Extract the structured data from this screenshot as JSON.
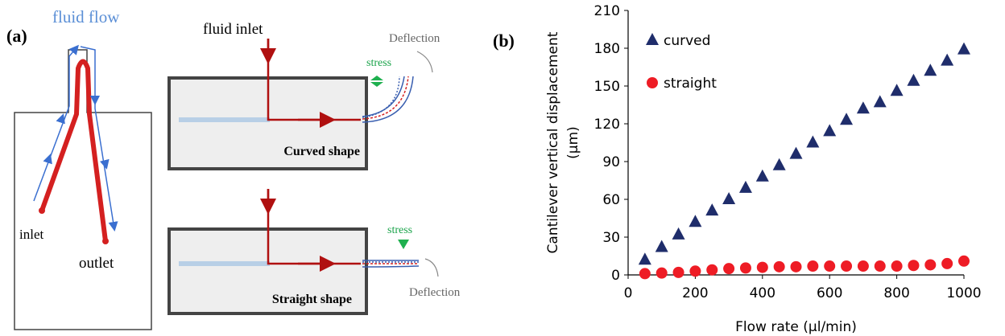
{
  "panel_a": {
    "label": "(a)",
    "fluid_flow": "fluid flow",
    "inlet": "inlet",
    "outlet": "outlet",
    "fluid_inlet": "fluid inlet",
    "curved": {
      "stress": "stress",
      "deflection": "Deflection",
      "caption": "Curved shape"
    },
    "straight": {
      "stress": "stress",
      "deflection": "Deflection",
      "caption": "Straight shape"
    }
  },
  "chart_data": {
    "type": "scatter",
    "panel_label": "(b)",
    "xlabel": "Flow rate (μl/min)",
    "ylabel": [
      "Cantilever vertical displacement",
      "(μm)"
    ],
    "x": [
      50,
      100,
      150,
      200,
      250,
      300,
      350,
      400,
      450,
      500,
      550,
      600,
      650,
      700,
      750,
      800,
      850,
      900,
      950,
      1000
    ],
    "series": [
      {
        "name": "curved",
        "color": "#1f2d6b",
        "marker": "triangle",
        "values": [
          12,
          22,
          32,
          42,
          51,
          60,
          69,
          78,
          87,
          96,
          105,
          114,
          123,
          132,
          137,
          146,
          154,
          162,
          170,
          179
        ]
      },
      {
        "name": "straight",
        "color": "#ee1c25",
        "marker": "circle",
        "values": [
          1,
          1.5,
          2,
          3,
          4,
          5,
          5.5,
          6,
          6.5,
          6.5,
          7,
          7,
          7,
          7,
          7,
          7,
          7.5,
          8,
          9,
          11
        ]
      }
    ],
    "xlim": [
      0,
      1000
    ],
    "xticks": [
      0,
      200,
      400,
      600,
      800,
      1000
    ],
    "ylim": [
      0,
      210
    ],
    "yticks": [
      0,
      30,
      60,
      90,
      120,
      150,
      180,
      210
    ],
    "legend": "upper left",
    "grid": false
  }
}
